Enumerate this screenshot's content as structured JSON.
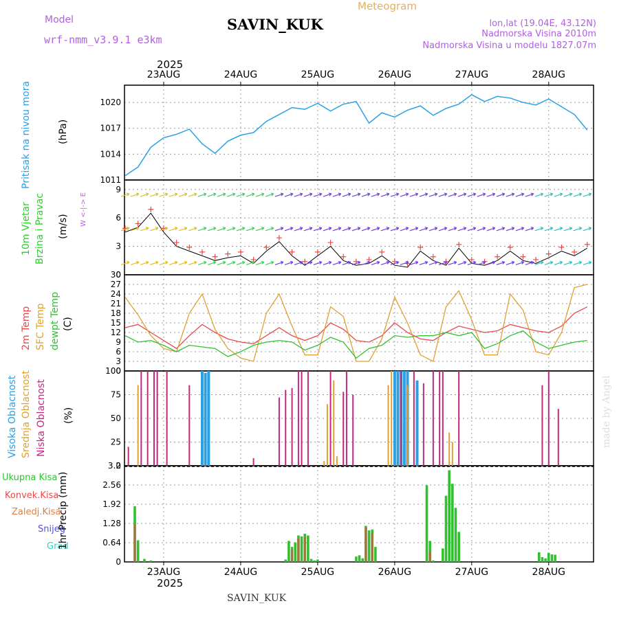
{
  "header": {
    "app_title": "Meteogram",
    "station": "SAVIN_KUK",
    "model_label": "Model",
    "model_name": "wrf-nmm_v3.9.1 e3km",
    "lonlat": "lon,lat (19.04E, 43.12N)",
    "elevation": "Nadmorska Visina 2010m",
    "model_elevation": "Nadmorska Visina u modelu 1827.07m",
    "year": "2025",
    "footer_station": "SAVIN_KUK",
    "credit": "made by Angel"
  },
  "colors": {
    "pressure": "#2aa0e6",
    "wind_label": "#2ad02a",
    "wind_dir": "#c060e0",
    "temp2m": "#e84848",
    "sfc_temp": "#e0a030",
    "dewpt": "#30c030",
    "high_cloud": "#2aa0e6",
    "mid_cloud": "#e0a030",
    "low_cloud": "#c02880",
    "total_precip": "#30c030",
    "conv_precip": "#e84848",
    "frozen": "#e08040",
    "snow": "#5050e0",
    "hail": "#30d0c0"
  },
  "days": [
    "23AUG",
    "24AUG",
    "25AUG",
    "26AUG",
    "27AUG",
    "28AUG"
  ],
  "panels": {
    "pressure": {
      "ylabel_name": "Pritisak na nivou mora",
      "unit": "(hPa)",
      "ticks": [
        "1011",
        "1014",
        "1017",
        "1020"
      ]
    },
    "wind": {
      "ylabel_name_1": "10m Vjetar",
      "ylabel_name_2": "Brzina i Pravac",
      "unit": "(m/s)",
      "ticks": [
        "0",
        "3",
        "6",
        "9"
      ],
      "compass": "W <-|-> E"
    },
    "temp": {
      "label_2m": "2m Temp",
      "label_sfc": "SFC Temp",
      "label_dew": "dewpt Temp",
      "unit": "(C)",
      "ticks": [
        "0",
        "3",
        "6",
        "9",
        "12",
        "15",
        "18",
        "21",
        "24",
        "27",
        "30"
      ]
    },
    "cloud": {
      "label_high": "Visoka Oblacnost",
      "label_mid": "Srednja Oblacnost",
      "label_low": "Niska Oblacnost",
      "unit": "(%)",
      "ticks": [
        "0",
        "25",
        "50",
        "75",
        "100"
      ]
    },
    "precip": {
      "label_total": "Ukupna Kisa",
      "label_conv": "Konvek.Kisa",
      "label_frozen": "Zaledj.Kisa",
      "label_snow": "Snijeg",
      "label_hail": "Grad",
      "unit": "1hr Precip (mm)",
      "ticks": [
        "0",
        "0.64",
        "1.28",
        "1.92",
        "2.56",
        "3.2"
      ]
    }
  },
  "chart_data": [
    {
      "type": "line",
      "title": "Pritisak na nivou mora",
      "ylabel": "hPa",
      "x_hours_from_22AUG12Z": [
        0,
        4,
        8,
        12,
        16,
        20,
        24,
        28,
        32,
        36,
        40,
        44,
        48,
        52,
        56,
        60,
        64,
        68,
        72,
        76,
        80,
        84,
        88,
        92,
        96,
        100,
        104,
        108,
        112,
        116,
        120,
        124,
        128,
        132,
        136,
        140,
        144
      ],
      "values": [
        1011.5,
        1012.5,
        1014.8,
        1015.9,
        1016.3,
        1016.9,
        1015.2,
        1014.1,
        1015.5,
        1016.2,
        1016.5,
        1017.8,
        1018.6,
        1019.4,
        1019.2,
        1019.9,
        1019.0,
        1019.8,
        1020.1,
        1017.6,
        1018.8,
        1018.3,
        1019.1,
        1019.6,
        1018.5,
        1019.3,
        1019.8,
        1020.9,
        1020.1,
        1020.7,
        1020.5,
        1020.0,
        1019.7,
        1020.4,
        1019.5,
        1018.6,
        1016.8
      ],
      "ylim": [
        1011,
        1022
      ]
    },
    {
      "type": "line",
      "title": "10m Vjetar Brzina i Pravac",
      "ylabel": "m/s",
      "series": [
        {
          "name": "wind speed",
          "values": [
            4.5,
            5.0,
            6.5,
            4.5,
            3.0,
            2.5,
            2.0,
            1.5,
            1.8,
            2.0,
            1.2,
            2.5,
            3.5,
            2.0,
            1.0,
            2.0,
            3.0,
            1.5,
            1.0,
            1.2,
            2.0,
            1.0,
            0.8,
            2.5,
            1.5,
            1.0,
            2.8,
            1.2,
            1.0,
            1.5,
            2.5,
            1.5,
            1.2,
            1.8,
            2.5,
            2.0,
            2.8
          ]
        }
      ],
      "ylim": [
        0,
        10
      ]
    },
    {
      "type": "line",
      "title": "Temperatura",
      "ylabel": "C",
      "series": [
        {
          "name": "2m Temp",
          "values": [
            13.5,
            14.5,
            12.0,
            9.5,
            7.0,
            11.0,
            14.5,
            12.0,
            10.0,
            9.0,
            8.5,
            11.0,
            13.5,
            11.0,
            9.5,
            11.0,
            15.0,
            13.0,
            9.5,
            9.0,
            11.0,
            15.0,
            12.0,
            10.0,
            9.5,
            12.0,
            14.0,
            13.0,
            12.0,
            12.5,
            14.5,
            13.5,
            12.5,
            12.0,
            14.0,
            18.0,
            20.0
          ]
        },
        {
          "name": "SFC Temp",
          "values": [
            23.0,
            17.5,
            11.0,
            7.0,
            6.0,
            18.0,
            24.0,
            13.0,
            7.0,
            4.0,
            3.0,
            18.0,
            24.0,
            14.0,
            5.0,
            5.0,
            20.0,
            17.0,
            3.0,
            3.0,
            10.0,
            23.0,
            15.0,
            5.0,
            3.0,
            20.0,
            25.0,
            16.0,
            5.0,
            5.0,
            24.0,
            19.0,
            6.0,
            5.0,
            12.0,
            26.0,
            27.0
          ]
        },
        {
          "name": "dewpt Temp",
          "values": [
            11.0,
            9.0,
            9.5,
            8.0,
            6.0,
            8.0,
            7.5,
            7.0,
            4.5,
            6.0,
            8.0,
            9.0,
            9.5,
            9.0,
            6.5,
            8.0,
            10.5,
            9.0,
            4.0,
            7.0,
            8.0,
            11.0,
            10.5,
            11.0,
            11.0,
            12.0,
            11.0,
            12.0,
            7.0,
            8.5,
            11.0,
            12.5,
            9.0,
            7.0,
            8.0,
            9.0,
            9.5
          ]
        }
      ],
      "ylim": [
        0,
        30
      ]
    },
    {
      "type": "bar",
      "title": "Oblacnost",
      "ylabel": "%",
      "series": [
        {
          "name": "Visoka Oblacnost",
          "x_hours": [
            24,
            25,
            26,
            84,
            85,
            86,
            87,
            88,
            91
          ],
          "values": [
            100,
            98,
            100,
            100,
            100,
            100,
            100,
            100,
            90
          ]
        },
        {
          "name": "Srednja Oblacnost",
          "x_hours": [
            4,
            54,
            62,
            63,
            65,
            66,
            82,
            83,
            86,
            88,
            101,
            102
          ],
          "values": [
            85,
            5,
            5,
            65,
            90,
            10,
            85,
            100,
            95,
            85,
            35,
            25
          ]
        },
        {
          "name": "Niska Oblacnost",
          "x_hours": [
            1,
            5,
            7,
            9,
            10,
            13,
            20,
            40,
            48,
            50,
            52,
            54,
            55,
            57,
            64,
            68,
            69,
            71,
            86,
            90,
            93,
            96,
            98,
            99,
            104,
            130,
            132,
            135
          ],
          "values": [
            20,
            100,
            100,
            100,
            100,
            100,
            85,
            8,
            72,
            80,
            82,
            100,
            100,
            100,
            100,
            78,
            100,
            75,
            100,
            100,
            87,
            100,
            100,
            100,
            100,
            85,
            100,
            60
          ]
        }
      ],
      "ylim": [
        0,
        100
      ]
    },
    {
      "type": "bar",
      "title": "1hr Precip",
      "ylabel": "mm",
      "series": [
        {
          "name": "Ukupna Kisa",
          "x_hours": [
            3,
            4,
            6,
            8,
            50,
            51,
            52,
            53,
            54,
            55,
            56,
            57,
            58,
            59,
            60,
            72,
            73,
            74,
            75,
            76,
            77,
            78,
            94,
            95,
            96,
            99,
            100,
            101,
            102,
            103,
            104,
            129,
            130,
            131,
            132,
            133,
            134
          ],
          "values": [
            1.85,
            0.72,
            0.1,
            0.05,
            0.08,
            0.7,
            0.5,
            0.65,
            0.88,
            0.85,
            0.94,
            0.88,
            0.1,
            0.05,
            0.08,
            0.18,
            0.22,
            0.12,
            1.2,
            1.05,
            1.08,
            0.5,
            2.55,
            0.7,
            0.05,
            0.45,
            2.2,
            3.05,
            2.6,
            1.8,
            1.0,
            0.32,
            0.16,
            0.12,
            0.3,
            0.25,
            0.24
          ]
        },
        {
          "name": "Konvek.Kisa",
          "x_hours": [
            3,
            52,
            54,
            56,
            75,
            77,
            95
          ],
          "values": [
            1.25,
            0.4,
            0.78,
            0.82,
            1.15,
            0.95,
            0.35
          ]
        }
      ],
      "ylim": [
        0,
        3.2
      ]
    }
  ]
}
